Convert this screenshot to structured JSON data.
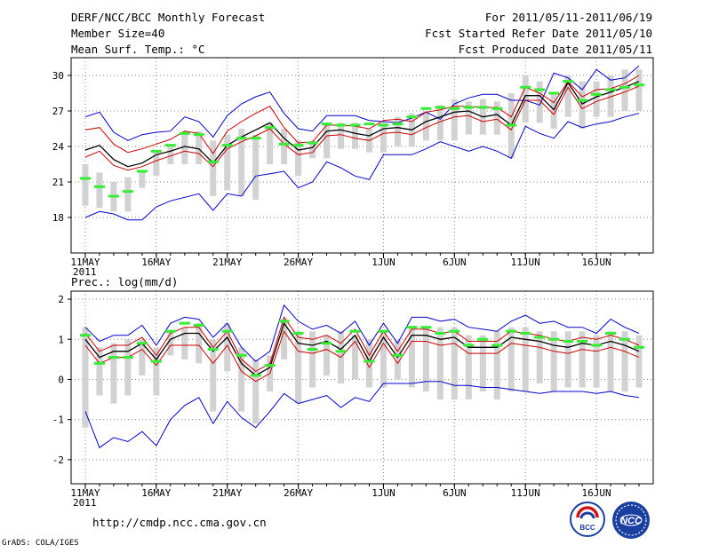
{
  "header": {
    "title": "DERF/NCC/BCC Monthly Forecast",
    "member_size": "Member Size=40",
    "period": "For 2011/05/11-2011/06/19",
    "fcst_started": "Fcst Started Refer Date 2011/05/10",
    "fcst_produced": "Fcst Produced Date 2011/05/11"
  },
  "footer": {
    "url": "http://cmdp.ncc.cma.gov.cn",
    "credit": "GrADS: COLA/IGES",
    "logo_bcc": "BCC",
    "logo_ncc": "NCC"
  },
  "colors": {
    "max_min": "#0000cc",
    "spread": "#cc0000",
    "ensemble_mean": "#000000",
    "box": "#d2d2d2",
    "median": "#33ee33"
  },
  "chart_data": [
    {
      "type": "line",
      "title": "Mean Surf. Temp.: °C",
      "xlabel": "",
      "ylabel": "",
      "x": [
        1,
        2,
        3,
        4,
        5,
        6,
        7,
        8,
        9,
        10,
        11,
        12,
        13,
        14,
        15,
        16,
        17,
        18,
        19,
        20,
        21,
        22,
        23,
        24,
        25,
        26,
        27,
        28,
        29,
        30,
        31,
        32,
        33,
        34,
        35,
        36,
        37,
        38,
        39,
        40
      ],
      "xlim": [
        0,
        41
      ],
      "x_tick_positions": [
        1,
        6,
        11,
        16,
        22,
        27,
        32,
        37
      ],
      "x_tick_labels": [
        "11MAY",
        "16MAY",
        "21MAY",
        "26MAY",
        "1JUN",
        "6JUN",
        "11JUN",
        "16JUN"
      ],
      "x_year_label": "2011",
      "ylim": [
        15,
        31.5
      ],
      "y_ticks": [
        18,
        21,
        24,
        27,
        30
      ],
      "grid": true,
      "series": [
        {
          "name": "max",
          "values": [
            26.5,
            26.9,
            25.2,
            24.5,
            25.0,
            25.2,
            25.3,
            26.5,
            26.1,
            24.8,
            26.6,
            27.6,
            28.2,
            28.6,
            26.8,
            25.5,
            25.3,
            26.6,
            26.6,
            26.6,
            26.2,
            26.1,
            26.0,
            26.4,
            26.9,
            26.3,
            27.6,
            28.1,
            28.4,
            28.4,
            27.9,
            27.9,
            27.5,
            30.2,
            29.8,
            28.8,
            30.5,
            29.6,
            29.8,
            30.8
          ]
        },
        {
          "name": "spread_upper",
          "values": [
            25.4,
            25.6,
            24.2,
            23.5,
            23.8,
            24.2,
            24.6,
            25.3,
            25.1,
            23.4,
            25.3,
            26.1,
            26.8,
            27.4,
            25.6,
            24.3,
            24.4,
            25.8,
            25.8,
            25.7,
            25.5,
            26.2,
            26.3,
            26.1,
            26.9,
            27.1,
            27.4,
            27.4,
            27.3,
            27.3,
            26.5,
            29.0,
            28.5,
            27.7,
            29.5,
            28.2,
            28.8,
            28.9,
            29.3,
            30.0
          ]
        },
        {
          "name": "ensemble_mean",
          "values": [
            23.7,
            24.1,
            22.9,
            22.3,
            22.6,
            23.3,
            23.6,
            24.0,
            23.8,
            22.6,
            24.1,
            24.8,
            25.4,
            26.0,
            24.7,
            23.7,
            23.9,
            25.3,
            25.4,
            25.1,
            24.9,
            25.5,
            25.6,
            25.4,
            26.1,
            26.5,
            26.9,
            27.0,
            26.5,
            26.7,
            25.8,
            28.3,
            28.3,
            27.1,
            29.4,
            27.6,
            28.2,
            28.6,
            29.0,
            29.5
          ]
        },
        {
          "name": "spread_lower",
          "values": [
            23.1,
            23.6,
            22.4,
            22.0,
            22.3,
            22.8,
            23.2,
            23.6,
            23.4,
            22.3,
            23.8,
            24.4,
            24.9,
            25.5,
            24.2,
            23.3,
            23.5,
            24.9,
            25.0,
            24.7,
            24.5,
            25.1,
            25.2,
            25.0,
            25.6,
            26.1,
            26.5,
            26.6,
            26.1,
            26.3,
            25.4,
            27.9,
            27.9,
            26.7,
            29.0,
            27.2,
            27.8,
            28.2,
            28.6,
            29.1
          ]
        },
        {
          "name": "min",
          "values": [
            18.0,
            18.5,
            18.3,
            17.8,
            17.8,
            18.9,
            19.4,
            19.7,
            20.0,
            18.6,
            20.0,
            19.8,
            21.5,
            21.7,
            21.9,
            20.5,
            21.0,
            22.7,
            22.2,
            21.5,
            21.2,
            23.3,
            23.3,
            23.3,
            23.8,
            24.4,
            24.0,
            23.6,
            24.0,
            23.6,
            23.0,
            25.7,
            25.1,
            24.7,
            26.1,
            25.6,
            25.9,
            26.1,
            26.5,
            26.8
          ]
        },
        {
          "name": "box_top",
          "values": [
            22.5,
            21.8,
            21.0,
            21.4,
            22.0,
            23.5,
            24.0,
            25.0,
            25.3,
            24.5,
            25.0,
            25.5,
            25.0,
            26.0,
            25.5,
            24.5,
            24.5,
            26.0,
            26.0,
            26.0,
            25.5,
            26.0,
            26.5,
            26.8,
            27.0,
            27.5,
            28.0,
            27.8,
            28.0,
            27.8,
            28.5,
            30.0,
            29.5,
            28.5,
            30.0,
            29.5,
            29.5,
            30.0,
            30.5,
            30.5
          ]
        },
        {
          "name": "box_bottom",
          "values": [
            19.0,
            18.8,
            18.5,
            18.5,
            20.5,
            21.5,
            22.5,
            22.5,
            22.5,
            19.8,
            20.3,
            19.8,
            19.5,
            22.5,
            22.5,
            21.5,
            23.0,
            23.0,
            23.8,
            23.8,
            23.5,
            23.5,
            24.0,
            24.0,
            24.5,
            24.5,
            24.5,
            25.0,
            25.0,
            25.0,
            23.0,
            26.0,
            26.0,
            25.5,
            26.5,
            25.5,
            26.5,
            26.5,
            27.0,
            27.0
          ]
        },
        {
          "name": "median",
          "values": [
            21.3,
            20.6,
            19.8,
            20.2,
            21.9,
            23.6,
            24.1,
            25.1,
            25.0,
            22.7,
            24.1,
            24.7,
            24.7,
            25.6,
            24.2,
            24.1,
            24.3,
            25.9,
            25.8,
            25.8,
            25.9,
            25.8,
            25.9,
            26.5,
            27.2,
            27.3,
            27.2,
            27.3,
            27.3,
            27.2,
            25.8,
            29.0,
            28.8,
            28.5,
            29.5,
            27.9,
            28.4,
            28.8,
            29.0,
            29.2
          ]
        }
      ]
    },
    {
      "type": "line",
      "title": "Prec.: log(mm/d)",
      "xlabel": "",
      "ylabel": "",
      "x": [
        1,
        2,
        3,
        4,
        5,
        6,
        7,
        8,
        9,
        10,
        11,
        12,
        13,
        14,
        15,
        16,
        17,
        18,
        19,
        20,
        21,
        22,
        23,
        24,
        25,
        26,
        27,
        28,
        29,
        30,
        31,
        32,
        33,
        34,
        35,
        36,
        37,
        38,
        39,
        40
      ],
      "xlim": [
        0,
        41
      ],
      "x_tick_positions": [
        1,
        6,
        11,
        16,
        22,
        27,
        32,
        37
      ],
      "x_tick_labels": [
        "11MAY",
        "16MAY",
        "21MAY",
        "26MAY",
        "1JUN",
        "6JUN",
        "11JUN",
        "16JUN"
      ],
      "x_year_label": "2011",
      "ylim": [
        -2.6,
        2.2
      ],
      "y_ticks": [
        -2,
        -1,
        0,
        1,
        2
      ],
      "grid": true,
      "series": [
        {
          "name": "max",
          "values": [
            1.3,
            0.95,
            1.1,
            1.1,
            1.35,
            0.85,
            1.4,
            1.55,
            1.5,
            1.05,
            1.4,
            0.8,
            0.45,
            0.7,
            1.85,
            1.45,
            1.25,
            1.35,
            1.15,
            1.45,
            0.85,
            1.4,
            0.9,
            1.55,
            1.55,
            1.45,
            1.5,
            1.3,
            1.25,
            1.2,
            1.45,
            1.6,
            1.4,
            1.45,
            1.3,
            1.3,
            1.15,
            1.5,
            1.3,
            1.15
          ]
        },
        {
          "name": "spread_upper",
          "values": [
            1.15,
            0.7,
            0.85,
            0.85,
            1.05,
            0.6,
            1.15,
            1.3,
            1.3,
            0.8,
            1.2,
            0.5,
            0.2,
            0.4,
            1.55,
            1.05,
            1.0,
            1.1,
            0.9,
            1.25,
            0.6,
            1.2,
            0.7,
            1.25,
            1.25,
            1.15,
            1.2,
            0.95,
            0.95,
            0.95,
            1.2,
            1.15,
            1.1,
            1.0,
            0.95,
            1.05,
            1.0,
            1.1,
            1.0,
            0.85
          ]
        },
        {
          "name": "ensemble_mean",
          "values": [
            1.0,
            0.55,
            0.7,
            0.7,
            0.9,
            0.5,
            1.0,
            1.15,
            1.15,
            0.7,
            1.05,
            0.4,
            0.1,
            0.3,
            1.4,
            0.9,
            0.85,
            0.95,
            0.75,
            1.1,
            0.45,
            1.05,
            0.55,
            1.1,
            1.1,
            1.0,
            1.05,
            0.8,
            0.8,
            0.8,
            1.05,
            1.0,
            0.95,
            0.85,
            0.8,
            0.9,
            0.85,
            0.95,
            0.85,
            0.7
          ]
        },
        {
          "name": "spread_lower",
          "values": [
            0.85,
            0.4,
            0.55,
            0.55,
            0.75,
            0.35,
            0.85,
            0.85,
            0.85,
            0.4,
            0.85,
            0.2,
            -0.05,
            0.15,
            1.2,
            0.7,
            0.65,
            0.75,
            0.55,
            0.95,
            0.3,
            0.9,
            0.4,
            0.95,
            0.95,
            0.85,
            0.9,
            0.65,
            0.65,
            0.65,
            0.9,
            0.85,
            0.8,
            0.7,
            0.65,
            0.75,
            0.7,
            0.8,
            0.7,
            0.55
          ]
        },
        {
          "name": "min",
          "values": [
            -0.8,
            -1.7,
            -1.45,
            -1.55,
            -1.3,
            -1.65,
            -1.0,
            -0.65,
            -0.45,
            -1.1,
            -0.55,
            -0.95,
            -1.2,
            -0.8,
            -0.35,
            -0.6,
            -0.5,
            -0.4,
            -0.7,
            -0.45,
            -0.55,
            -0.1,
            -0.1,
            -0.1,
            -0.05,
            -0.05,
            -0.15,
            -0.15,
            -0.2,
            -0.2,
            -0.25,
            -0.3,
            -0.35,
            -0.3,
            -0.3,
            -0.3,
            -0.35,
            -0.3,
            -0.4,
            -0.45
          ]
        },
        {
          "name": "box_top",
          "values": [
            1.3,
            0.8,
            0.9,
            1.0,
            1.0,
            0.8,
            1.2,
            1.3,
            1.4,
            1.0,
            1.4,
            0.8,
            0.5,
            0.6,
            1.5,
            1.2,
            1.2,
            1.1,
            1.2,
            1.1,
            1.0,
            1.2,
            1.0,
            1.3,
            1.3,
            1.3,
            1.3,
            1.1,
            1.1,
            1.2,
            1.3,
            1.3,
            1.2,
            1.2,
            1.2,
            1.2,
            1.1,
            1.2,
            1.2,
            1.1
          ]
        },
        {
          "name": "box_bottom",
          "values": [
            -1.2,
            -0.4,
            -0.6,
            -0.4,
            0.1,
            -0.4,
            0.6,
            0.5,
            0.4,
            -0.8,
            0.2,
            -0.8,
            -1.1,
            -0.3,
            0.5,
            -0.6,
            -0.2,
            0.1,
            -0.1,
            0.0,
            -0.2,
            -0.2,
            0.0,
            -0.2,
            -0.3,
            -0.5,
            -0.5,
            -0.5,
            -0.3,
            -0.5,
            -0.3,
            -0.3,
            -0.1,
            -0.3,
            -0.2,
            -0.2,
            -0.2,
            -0.3,
            -0.3,
            -0.2
          ]
        },
        {
          "name": "median",
          "values": [
            1.1,
            0.4,
            0.55,
            0.55,
            0.9,
            0.45,
            1.2,
            1.4,
            1.35,
            0.75,
            1.2,
            0.6,
            0.1,
            0.35,
            1.45,
            1.15,
            0.75,
            0.9,
            0.7,
            1.2,
            0.45,
            1.2,
            0.6,
            1.3,
            1.3,
            1.15,
            1.2,
            0.85,
            1.0,
            0.85,
            1.2,
            1.15,
            1.05,
            1.0,
            0.95,
            0.95,
            0.85,
            1.15,
            1.0,
            0.8
          ]
        }
      ]
    }
  ]
}
